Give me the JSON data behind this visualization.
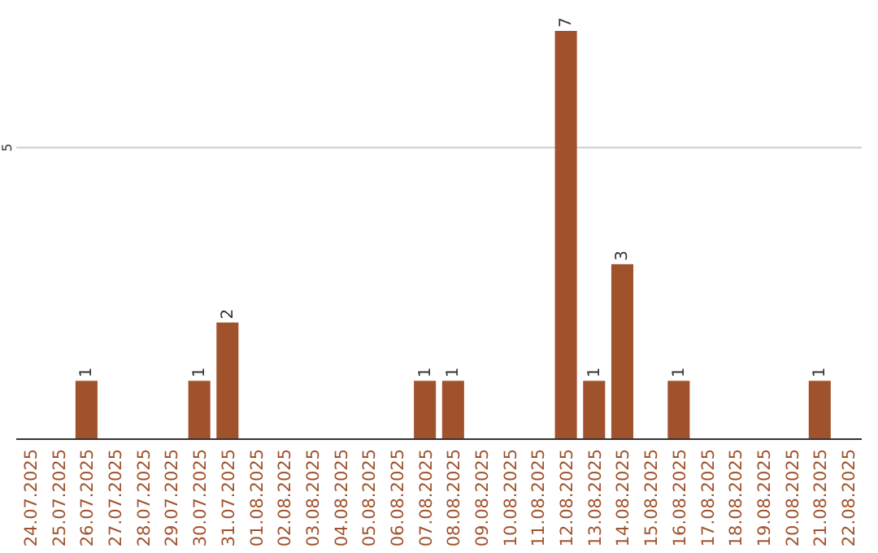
{
  "chart_data": {
    "type": "bar",
    "categories": [
      "24.07.2025",
      "25.07.2025",
      "26.07.2025",
      "27.07.2025",
      "28.07.2025",
      "29.07.2025",
      "30.07.2025",
      "31.07.2025",
      "01.08.2025",
      "02.08.2025",
      "03.08.2025",
      "04.08.2025",
      "05.08.2025",
      "06.08.2025",
      "07.08.2025",
      "08.08.2025",
      "09.08.2025",
      "10.08.2025",
      "11.08.2025",
      "12.08.2025",
      "13.08.2025",
      "14.08.2025",
      "15.08.2025",
      "16.08.2025",
      "17.08.2025",
      "18.08.2025",
      "19.08.2025",
      "20.08.2025",
      "21.08.2025",
      "22.08.2025"
    ],
    "values": [
      null,
      null,
      1,
      null,
      null,
      null,
      1,
      2,
      null,
      null,
      null,
      null,
      null,
      null,
      1,
      1,
      null,
      null,
      null,
      7,
      1,
      3,
      null,
      1,
      null,
      null,
      null,
      null,
      1,
      null
    ],
    "color": "#a0522d",
    "ylim": [
      0,
      7
    ],
    "yticks": [
      5
    ],
    "grid": "y",
    "data_labels": true
  }
}
